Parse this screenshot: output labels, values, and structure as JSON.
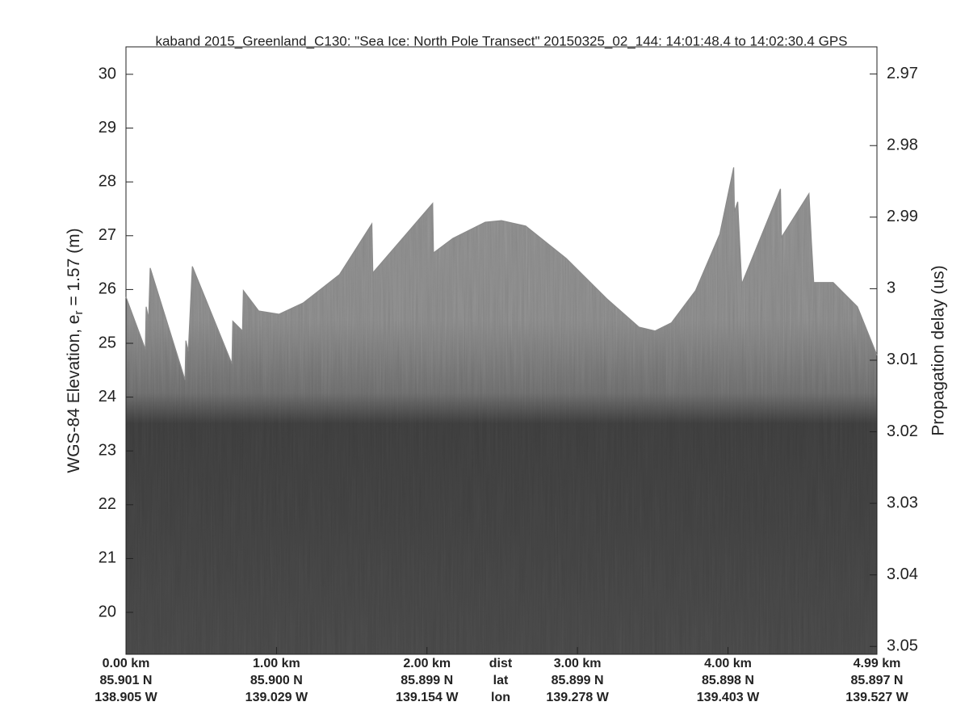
{
  "chart_data": {
    "type": "echogram",
    "title": "kaband 2015_Greenland_C130: \"Sea Ice: North Pole Transect\"  20150325_02_144: 14:01:48.4 to 14:02:30.4 GPS",
    "ylabel": {
      "text": "WGS-84 Elevation, e",
      "subscript": "r",
      "suffix": " = 1.57 (m)"
    },
    "y2label": "Propagation delay (us)",
    "xlim": [
      0,
      4.99
    ],
    "ylim": [
      19.22,
      30.51
    ],
    "y2lim": [
      2.9662,
      3.0511
    ],
    "y2_reversed": true,
    "yticks": [
      20,
      21,
      22,
      23,
      24,
      25,
      26,
      27,
      28,
      29,
      30
    ],
    "y2ticks": [
      2.97,
      2.98,
      2.99,
      3,
      3.01,
      3.02,
      3.03,
      3.04,
      3.05
    ],
    "xticks": [
      {
        "value": 0,
        "label": "0.00 km"
      },
      {
        "value": 1,
        "label": "1.00 km"
      },
      {
        "value": 2,
        "label": "2.00 km"
      },
      {
        "value": 3,
        "label": "3.00 km"
      },
      {
        "value": 4,
        "label": "4.00 km"
      },
      {
        "value": 4.99,
        "label": "4.99 km"
      }
    ],
    "xtick_lat": [
      "85.901 N",
      "85.900 N",
      "85.899 N",
      "85.899 N",
      "85.898 N",
      "85.897 N"
    ],
    "xtick_lon": [
      "138.905 W",
      "139.029 W",
      "139.154 W",
      "139.278 W",
      "139.403 W",
      "139.527 W"
    ],
    "xtick_rows": [
      "dist",
      "lat",
      "lon"
    ],
    "grid": false,
    "surface": {
      "color": "#8a8a8a",
      "x": [
        0,
        0.129,
        0.134,
        0.151,
        0.161,
        0.392,
        0.398,
        0.414,
        0.441,
        0.704,
        0.71,
        0.774,
        0.78,
        0.882,
        1.016,
        1.177,
        1.419,
        1.634,
        1.64,
        2.038,
        2.043,
        2.172,
        2.387,
        2.495,
        2.656,
        2.925,
        3.194,
        3.409,
        3.516,
        3.624,
        3.785,
        3.946,
        4.038,
        4.043,
        4.065,
        4.07,
        4.091,
        4.349,
        4.355,
        4.538,
        4.554,
        4.57,
        4.699,
        4.86,
        4.99
      ],
      "values": [
        25.86,
        24.89,
        25.68,
        25.45,
        26.4,
        24.32,
        25.05,
        24.85,
        26.43,
        24.62,
        25.41,
        25.23,
        25.98,
        25.6,
        25.54,
        25.75,
        26.28,
        27.22,
        26.31,
        27.6,
        26.68,
        26.95,
        27.25,
        27.28,
        27.18,
        26.58,
        25.83,
        25.3,
        25.23,
        25.38,
        25.98,
        27.03,
        28.27,
        27.45,
        27.63,
        27.33,
        26.1,
        27.87,
        26.97,
        27.78,
        26.92,
        26.13,
        26.13,
        25.68,
        24.78
      ]
    }
  }
}
